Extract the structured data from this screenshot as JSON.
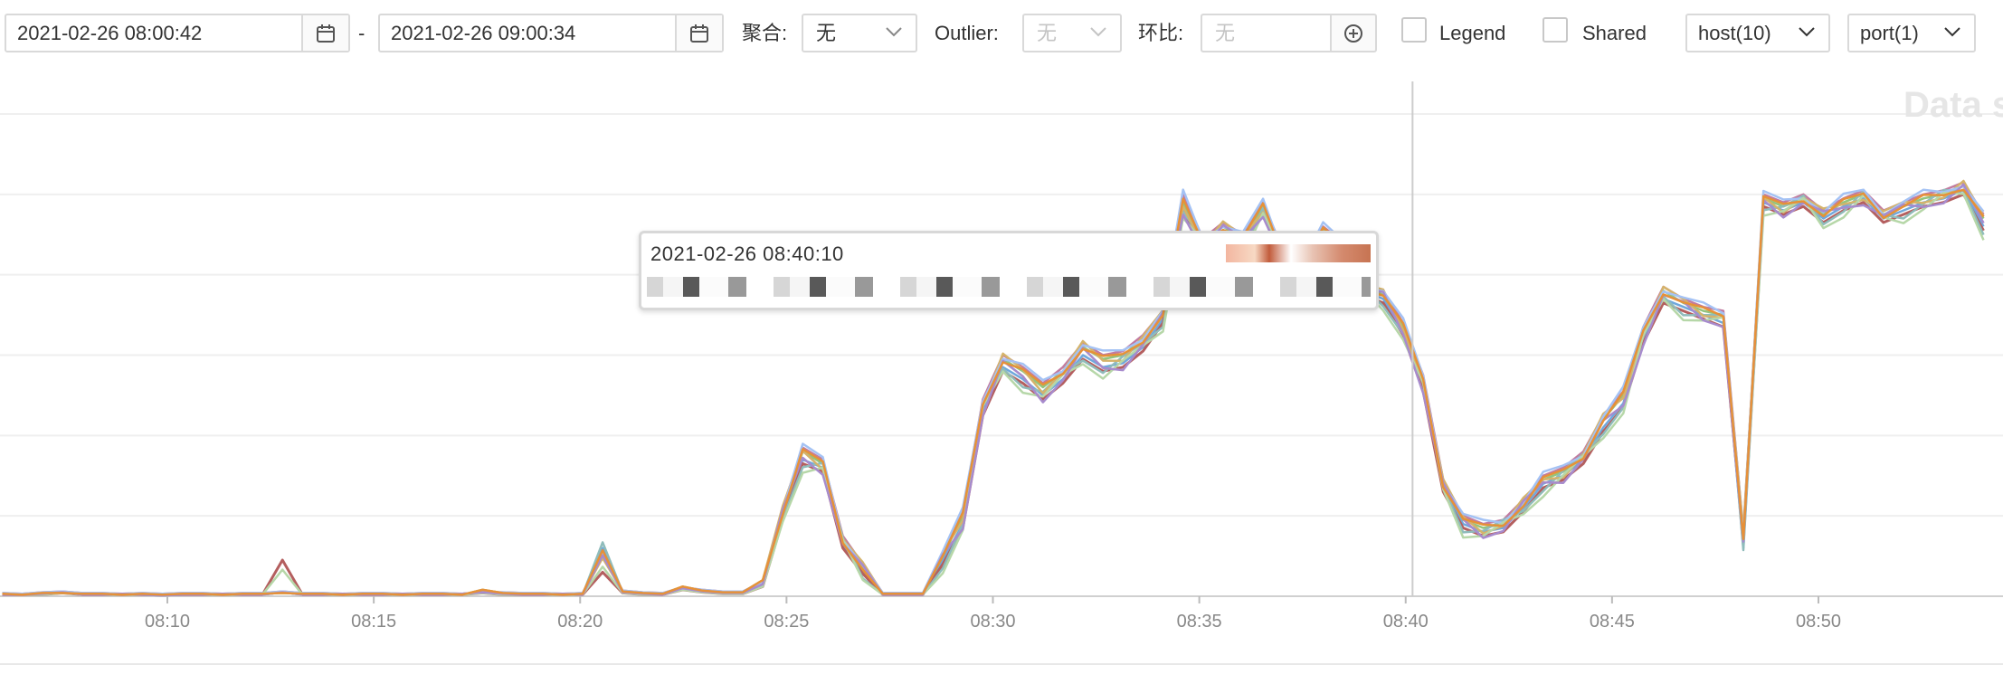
{
  "toolbar": {
    "start_time": "2021-02-26 08:00:42",
    "range_separator": "-",
    "end_time": "2021-02-26 09:00:34",
    "aggregate_label": "聚合:",
    "aggregate_value": "无",
    "outlier_label": "Outlier:",
    "outlier_value": "无",
    "compare_label": "环比:",
    "compare_placeholder": "无",
    "legend_label": "Legend",
    "shared_label": "Shared",
    "host_select": "host(10)",
    "port_select": "port(1)"
  },
  "watermark": "Data s",
  "tooltip": {
    "time": "2021-02-26 08:40:10"
  },
  "chart_data": {
    "type": "line",
    "x_ticks": [
      "08:10",
      "08:15",
      "08:20",
      "08:25",
      "08:30",
      "08:35",
      "08:40",
      "08:45",
      "08:50"
    ],
    "x_range": [
      "08:06",
      "08:54"
    ],
    "y_range": [
      0,
      6
    ],
    "y_grid_lines": 6,
    "crosshair_x": "08:40:10",
    "grid": true,
    "colors": [
      "#6fa8dc",
      "#93c47d",
      "#c27ba0",
      "#b45f5f",
      "#8fbcbb",
      "#d5b36b",
      "#a4c2f4",
      "#b6d7a8",
      "#a78bcd",
      "#e69138"
    ],
    "series": [
      {
        "values": [
          0.02,
          0.02,
          0.03,
          0.05,
          0.02,
          0.02,
          0.03,
          0.02,
          0.01,
          0.02,
          0.02,
          0.03,
          0.02,
          0.02,
          0.05,
          0.02,
          0.02,
          0.03,
          0.02,
          0.02,
          0.03,
          0.02,
          0.02,
          0.03,
          0.05,
          0.03,
          0.02,
          0.02,
          0.03,
          0.02,
          0.6,
          0.05,
          0.03,
          0.02,
          0.1,
          0.06,
          0.04,
          0.04,
          0.15,
          1.0,
          1.7,
          1.6,
          0.65,
          0.3,
          0.02,
          0.02,
          0.02,
          0.45,
          0.9,
          2.3,
          2.85,
          2.7,
          2.5,
          2.7,
          3.0,
          2.85,
          2.9,
          3.1,
          3.45,
          4.8,
          4.35,
          4.55,
          4.4,
          4.8,
          4.2,
          4.1,
          4.5,
          4.3,
          3.8,
          3.7,
          3.3,
          2.6,
          1.35,
          0.9,
          0.8,
          0.85,
          1.1,
          1.4,
          1.5,
          1.7,
          2.1,
          2.4,
          3.2,
          3.7,
          3.6,
          3.5,
          3.4,
          0.6,
          4.9,
          4.8,
          4.9,
          4.7,
          4.85,
          4.95,
          4.7,
          4.8,
          4.9,
          4.95,
          5.05,
          4.6
        ]
      },
      {
        "values": [
          0.03,
          0.02,
          0.04,
          0.04,
          0.03,
          0.03,
          0.02,
          0.03,
          0.02,
          0.03,
          0.03,
          0.02,
          0.03,
          0.03,
          0.04,
          0.03,
          0.03,
          0.02,
          0.03,
          0.03,
          0.02,
          0.03,
          0.03,
          0.02,
          0.08,
          0.04,
          0.03,
          0.03,
          0.02,
          0.03,
          0.55,
          0.06,
          0.04,
          0.03,
          0.12,
          0.07,
          0.05,
          0.05,
          0.2,
          1.05,
          1.8,
          1.65,
          0.7,
          0.35,
          0.03,
          0.03,
          0.03,
          0.5,
          1.0,
          2.4,
          2.95,
          2.8,
          2.6,
          2.8,
          3.1,
          2.95,
          3.0,
          3.2,
          3.5,
          4.9,
          4.4,
          4.6,
          4.45,
          4.85,
          4.25,
          4.15,
          4.55,
          4.35,
          3.85,
          3.75,
          3.35,
          2.7,
          1.4,
          0.95,
          0.85,
          0.9,
          1.15,
          1.45,
          1.55,
          1.75,
          2.2,
          2.5,
          3.3,
          3.8,
          3.65,
          3.55,
          3.5,
          0.75,
          4.95,
          4.85,
          4.95,
          4.75,
          4.9,
          5.0,
          4.75,
          4.85,
          4.95,
          5.0,
          5.1,
          4.7
        ]
      },
      {
        "values": [
          0.04,
          0.03,
          0.05,
          0.06,
          0.04,
          0.04,
          0.03,
          0.04,
          0.03,
          0.04,
          0.04,
          0.03,
          0.04,
          0.04,
          0.06,
          0.04,
          0.04,
          0.03,
          0.04,
          0.04,
          0.03,
          0.04,
          0.04,
          0.03,
          0.05,
          0.05,
          0.04,
          0.04,
          0.03,
          0.04,
          0.5,
          0.07,
          0.05,
          0.04,
          0.11,
          0.08,
          0.06,
          0.06,
          0.18,
          1.1,
          1.85,
          1.7,
          0.75,
          0.4,
          0.04,
          0.04,
          0.04,
          0.55,
          1.05,
          2.45,
          3.0,
          2.85,
          2.65,
          2.85,
          3.15,
          3.0,
          3.05,
          3.25,
          3.55,
          5.0,
          4.45,
          4.65,
          4.5,
          4.9,
          4.3,
          4.2,
          4.6,
          4.4,
          3.9,
          3.8,
          3.4,
          2.75,
          1.45,
          1.0,
          0.9,
          0.95,
          1.2,
          1.5,
          1.6,
          1.8,
          2.25,
          2.55,
          3.35,
          3.85,
          3.7,
          3.6,
          3.55,
          0.8,
          5.0,
          4.9,
          5.0,
          4.8,
          4.95,
          5.05,
          4.8,
          4.9,
          5.0,
          5.05,
          5.15,
          4.75
        ]
      },
      {
        "values": [
          0.02,
          0.02,
          0.02,
          0.04,
          0.02,
          0.02,
          0.02,
          0.02,
          0.02,
          0.02,
          0.02,
          0.02,
          0.02,
          0.02,
          0.45,
          0.02,
          0.02,
          0.02,
          0.02,
          0.02,
          0.02,
          0.02,
          0.02,
          0.02,
          0.04,
          0.02,
          0.02,
          0.02,
          0.02,
          0.02,
          0.3,
          0.04,
          0.02,
          0.02,
          0.08,
          0.05,
          0.03,
          0.03,
          0.12,
          0.95,
          1.65,
          1.55,
          0.6,
          0.28,
          0.02,
          0.02,
          0.02,
          0.4,
          0.85,
          2.25,
          2.8,
          2.65,
          2.45,
          2.65,
          2.95,
          2.8,
          2.85,
          3.05,
          3.4,
          4.75,
          4.3,
          4.5,
          4.35,
          4.75,
          4.15,
          4.05,
          4.45,
          4.25,
          3.75,
          3.65,
          3.25,
          2.55,
          1.3,
          0.85,
          0.75,
          0.8,
          1.05,
          1.35,
          1.45,
          1.65,
          2.05,
          2.35,
          3.15,
          3.65,
          3.55,
          3.45,
          3.35,
          0.7,
          4.85,
          4.75,
          4.85,
          4.65,
          4.8,
          4.9,
          4.65,
          4.75,
          4.85,
          4.9,
          5.0,
          4.55
        ]
      }
    ]
  }
}
